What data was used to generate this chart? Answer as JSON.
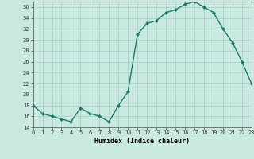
{
  "x": [
    0,
    1,
    2,
    3,
    4,
    5,
    6,
    7,
    8,
    9,
    10,
    11,
    12,
    13,
    14,
    15,
    16,
    17,
    18,
    19,
    20,
    21,
    22,
    23
  ],
  "y": [
    18,
    16.5,
    16,
    15.5,
    15,
    17.5,
    16.5,
    16,
    15,
    18,
    20.5,
    31,
    33,
    33.5,
    35,
    35.5,
    36.5,
    37,
    36,
    35,
    32,
    29.5,
    26,
    22
  ],
  "title": "",
  "xlabel": "Humidex (Indice chaleur)",
  "ylabel": "",
  "xlim": [
    0,
    23
  ],
  "ylim": [
    14,
    37
  ],
  "yticks": [
    14,
    16,
    18,
    20,
    22,
    24,
    26,
    28,
    30,
    32,
    34,
    36
  ],
  "xticks": [
    0,
    1,
    2,
    3,
    4,
    5,
    6,
    7,
    8,
    9,
    10,
    11,
    12,
    13,
    14,
    15,
    16,
    17,
    18,
    19,
    20,
    21,
    22,
    23
  ],
  "line_color": "#1a7a6e",
  "marker": "D",
  "marker_size": 2.0,
  "bg_color": "#c8e8e0",
  "grid_color": "#a0cfc8",
  "line_width": 1.0
}
